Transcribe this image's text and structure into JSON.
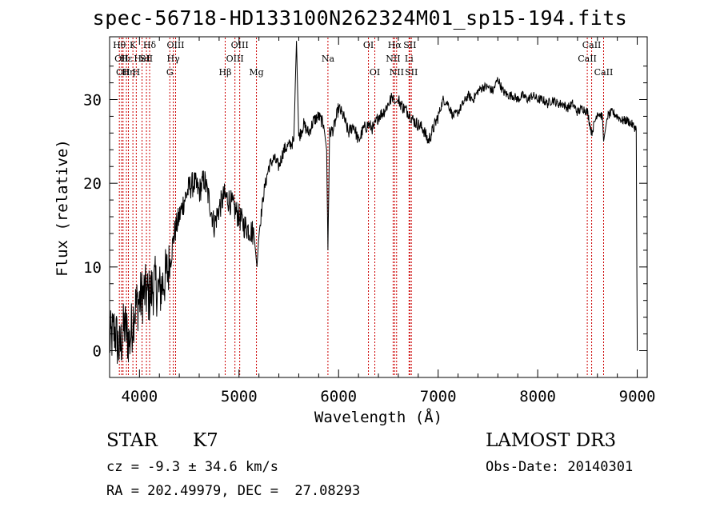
{
  "chart_data": {
    "type": "line",
    "title": "spec-56718-HD133100N262324M01_sp15-194.fits",
    "xlabel": "Wavelength (Å)",
    "ylabel": "Flux (relative)",
    "xlim": [
      3700,
      9100
    ],
    "ylim": [
      -3.2,
      37.5
    ],
    "x_ticks": [
      4000,
      5000,
      6000,
      7000,
      8000,
      9000
    ],
    "y_ticks": [
      0,
      10,
      20,
      30
    ],
    "grid": false,
    "line_color": "#000000",
    "marker_color": "#cc0000",
    "series": [
      {
        "x": [
          3700,
          3750,
          3800,
          3850,
          3900,
          3950,
          4000,
          4050,
          4100,
          4150,
          4200,
          4250,
          4300,
          4350,
          4400,
          4450,
          4500,
          4550,
          4600,
          4650,
          4700,
          4750,
          4800,
          4850,
          4900,
          4950,
          5000,
          5050,
          5100,
          5150,
          5180,
          5200,
          5250,
          5300,
          5350,
          5400,
          5450,
          5500,
          5550,
          5577,
          5600,
          5650,
          5700,
          5750,
          5800,
          5850,
          5880,
          5893,
          5910,
          5950,
          6000,
          6050,
          6100,
          6150,
          6200,
          6250,
          6300,
          6350,
          6400,
          6450,
          6500,
          6550,
          6563,
          6600,
          6650,
          6700,
          6750,
          6800,
          6850,
          6900,
          6950,
          7000,
          7050,
          7100,
          7150,
          7200,
          7250,
          7300,
          7350,
          7400,
          7450,
          7500,
          7550,
          7600,
          7650,
          7700,
          7750,
          7800,
          7850,
          7900,
          7950,
          8000,
          8050,
          8100,
          8150,
          8200,
          8250,
          8300,
          8350,
          8400,
          8450,
          8500,
          8542,
          8600,
          8650,
          8662,
          8700,
          8750,
          8800,
          8850,
          8900,
          8950,
          8990,
          9000
        ],
        "y": [
          1.0,
          2.5,
          0.0,
          3.0,
          1.0,
          5.0,
          6.0,
          7.0,
          6.5,
          8.0,
          7.0,
          8.5,
          10.0,
          14.0,
          16.0,
          18.0,
          19.5,
          20.0,
          19.0,
          20.5,
          18.0,
          15.0,
          17.0,
          18.5,
          18.0,
          17.0,
          16.0,
          15.0,
          14.5,
          14.0,
          10.0,
          14.0,
          19.0,
          22.0,
          23.0,
          22.0,
          24.0,
          24.5,
          25.0,
          37.0,
          25.5,
          27.0,
          26.0,
          27.5,
          28.0,
          27.0,
          24.0,
          12.0,
          26.0,
          26.5,
          29.0,
          28.0,
          26.0,
          27.0,
          25.0,
          26.5,
          27.0,
          26.5,
          28.0,
          28.5,
          29.5,
          30.5,
          29.5,
          30.0,
          29.0,
          28.5,
          27.5,
          27.0,
          26.5,
          25.0,
          26.5,
          28.0,
          30.0,
          29.5,
          28.0,
          28.5,
          29.5,
          30.5,
          30.0,
          31.0,
          31.5,
          31.5,
          31.0,
          32.5,
          31.0,
          30.5,
          30.5,
          30.0,
          30.5,
          30.0,
          30.5,
          30.0,
          30.0,
          29.5,
          30.0,
          29.5,
          29.5,
          29.0,
          29.5,
          28.5,
          29.0,
          28.5,
          26.0,
          28.5,
          28.0,
          25.0,
          28.0,
          28.5,
          28.0,
          27.5,
          27.5,
          27.0,
          26.5,
          0.0
        ]
      }
    ],
    "lines": [
      {
        "x": 3798,
        "label": "Hθ",
        "row": 0
      },
      {
        "x": 3820,
        "label": "OII",
        "row": 1
      },
      {
        "x": 3835,
        "label": "OII",
        "row": 2
      },
      {
        "x": 3869,
        "label": "Hε",
        "row": 1
      },
      {
        "x": 3889,
        "label": "Hη",
        "row": 2
      },
      {
        "x": 3934,
        "label": "K",
        "row": 0
      },
      {
        "x": 3968,
        "label": "H",
        "row": 2
      },
      {
        "x": 4026,
        "label": "HeI",
        "row": 1
      },
      {
        "x": 4070,
        "label": "SII",
        "row": 1
      },
      {
        "x": 4102,
        "label": "Hδ",
        "row": 0
      },
      {
        "x": 4305,
        "label": "G",
        "row": 2
      },
      {
        "x": 4340,
        "label": "Hγ",
        "row": 1
      },
      {
        "x": 4363,
        "label": "OIII",
        "row": 0
      },
      {
        "x": 4861,
        "label": "Hβ",
        "row": 2
      },
      {
        "x": 4959,
        "label": "OIII",
        "row": 1
      },
      {
        "x": 5007,
        "label": "OIII",
        "row": 0
      },
      {
        "x": 5175,
        "label": "Mg",
        "row": 2
      },
      {
        "x": 5893,
        "label": "Na",
        "row": 1
      },
      {
        "x": 6300,
        "label": "OI",
        "row": 0
      },
      {
        "x": 6364,
        "label": "OI",
        "row": 2
      },
      {
        "x": 6548,
        "label": "NII",
        "row": 1
      },
      {
        "x": 6563,
        "label": "Hα",
        "row": 0
      },
      {
        "x": 6583,
        "label": "NII",
        "row": 2
      },
      {
        "x": 6708,
        "label": "Li",
        "row": 1
      },
      {
        "x": 6716,
        "label": "SII",
        "row": 0
      },
      {
        "x": 6731,
        "label": "SII",
        "row": 2
      },
      {
        "x": 8498,
        "label": "CaII",
        "row": 1
      },
      {
        "x": 8542,
        "label": "CaII",
        "row": 0
      },
      {
        "x": 8662,
        "label": "CaII",
        "row": 2
      }
    ]
  },
  "info": {
    "class": "STAR",
    "subclass": "K7",
    "cz": "cz = -9.3 ± 34.6 km/s",
    "radec": "RA = 202.49979, DEC =  27.08293",
    "survey": "LAMOST DR3",
    "obsdate": "Obs-Date: 20140301"
  }
}
